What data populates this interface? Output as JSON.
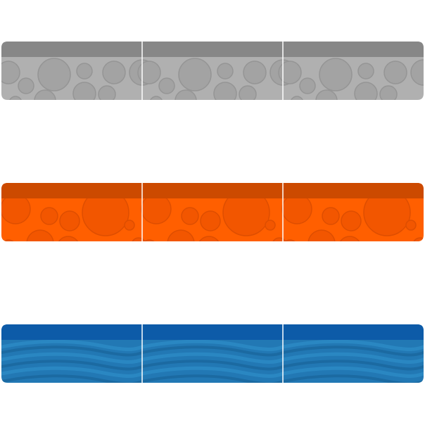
{
  "tiles": [
    {
      "name": "stone",
      "segments": 3,
      "colors": {
        "base": "#b0b0b0",
        "top_band": "#878787",
        "pattern_fill": "#a3a3a3",
        "pattern_stroke": "#959595",
        "divider": "#ffffff"
      },
      "pattern": "bubbles"
    },
    {
      "name": "lava",
      "segments": 3,
      "colors": {
        "base": "#ff5f00",
        "top_band": "#cc4a00",
        "pattern_fill": "#f25600",
        "pattern_stroke": "#de4e00",
        "divider": "#ffffff"
      },
      "pattern": "bubbles"
    },
    {
      "name": "water",
      "segments": 3,
      "colors": {
        "base": "#2278b4",
        "top_band": "#0d5ba8",
        "wave_light": "#2a87c2",
        "wave_dark": "#1b6aa2",
        "divider": "#ffffff"
      },
      "pattern": "waves"
    }
  ]
}
